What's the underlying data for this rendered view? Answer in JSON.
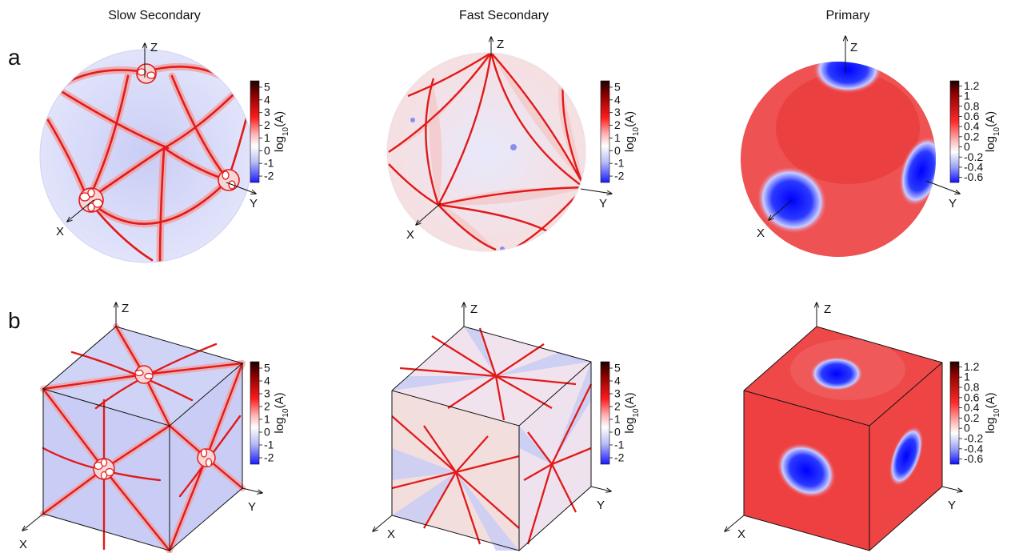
{
  "columns": [
    "Slow Secondary",
    "Fast Secondary",
    "Primary"
  ],
  "rows": [
    "a",
    "b"
  ],
  "axes": {
    "x": "X",
    "y": "Y",
    "z": "Z"
  },
  "colorbar_secondary": {
    "ticks": [
      "5",
      "4",
      "3",
      "2",
      "1",
      "0",
      "-1",
      "-2"
    ],
    "unit_prefix": "log",
    "unit_sub": "10",
    "unit_suffix": "(A)"
  },
  "colorbar_primary": {
    "ticks": [
      "1.2",
      "1",
      "0.8",
      "0.6",
      "0.4",
      "0.2",
      "0",
      "-0.2",
      "-0.4",
      "-0.6"
    ],
    "unit_prefix": "log",
    "unit_sub": "10",
    "unit_suffix": "(A)"
  },
  "colors": {
    "blue": "#2a2aff",
    "pale_blue": "#c9cdf5",
    "red": "#e41a1c",
    "pale_red": "#f7c4c4",
    "dark": "#3a0000"
  }
}
